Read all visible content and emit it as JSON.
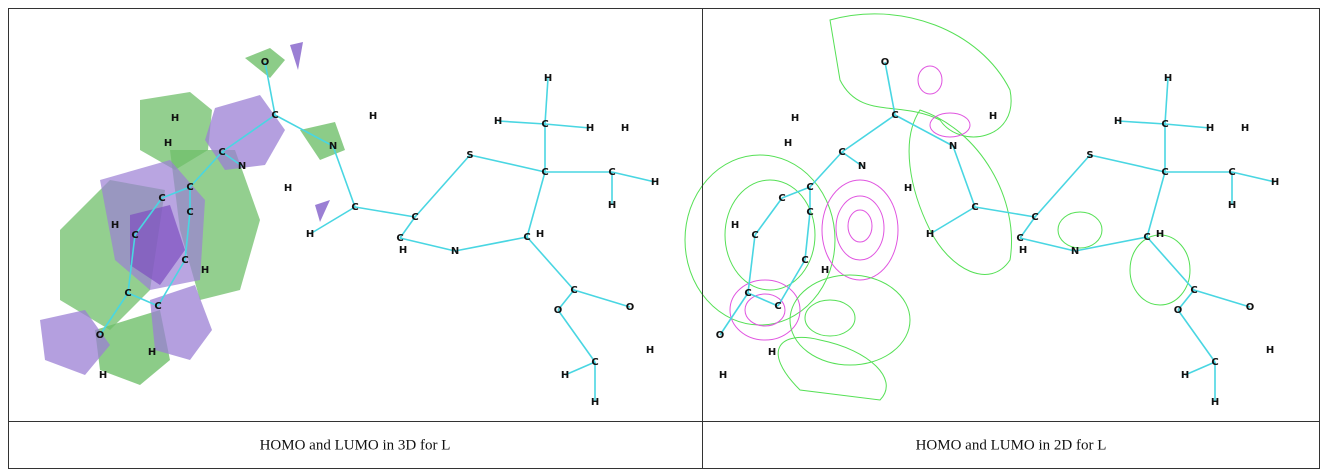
{
  "panels": [
    {
      "atoms": [
        "O",
        "C",
        "H",
        "N",
        "H",
        "H",
        "C",
        "N",
        "H",
        "S",
        "C",
        "H",
        "H",
        "H",
        "H",
        "C",
        "C",
        "H",
        "H",
        "C",
        "C",
        "C",
        "H",
        "N",
        "C",
        "H",
        "H",
        "C",
        "C",
        "C",
        "H",
        "C",
        "C",
        "H",
        "C",
        "C",
        "O",
        "H",
        "H",
        "C",
        "O",
        "O",
        "C",
        "H",
        "H",
        "H"
      ],
      "caption": "HOMO and LUMO in 3D for L"
    },
    {
      "atoms": [
        "O",
        "C",
        "H",
        "N",
        "H",
        "H",
        "C",
        "N",
        "H",
        "S",
        "C",
        "H",
        "H",
        "H",
        "H",
        "C",
        "C",
        "H",
        "H",
        "C",
        "C",
        "C",
        "H",
        "N",
        "C",
        "H",
        "H",
        "C",
        "C",
        "C",
        "H",
        "C",
        "C",
        "H",
        "C",
        "C",
        "O",
        "H",
        "H",
        "C",
        "O",
        "O",
        "C",
        "H",
        "H",
        "H"
      ],
      "caption": "HOMO and LUMO in 2D for L"
    }
  ]
}
